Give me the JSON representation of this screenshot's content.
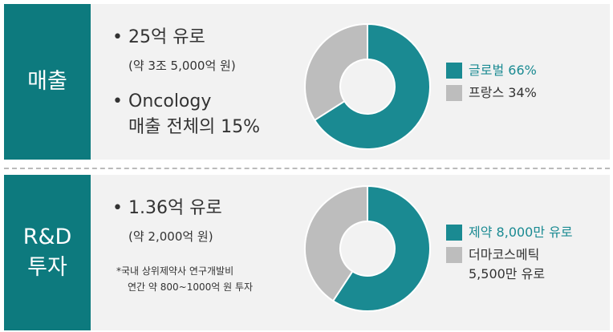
{
  "sections": [
    {
      "label": [
        "매출"
      ],
      "bullets": [
        {
          "lines": [
            "25억 유로"
          ],
          "sub": "(약 3조 5,000억 원)"
        },
        {
          "lines": [
            "Oncology",
            "매출 전체의 15%"
          ]
        }
      ]
    },
    {
      "label": [
        "R&D",
        "투자"
      ],
      "bullets": [
        {
          "lines": [
            "1.36억 유로"
          ],
          "sub": "(약 2,000억 원)"
        }
      ],
      "note": [
        "*국내 상위제약사 연구개발비",
        "연간 약 800~1000억 원 투자"
      ]
    }
  ],
  "chart_data": [
    {
      "type": "pie",
      "categories": [
        "글로벌",
        "프랑스"
      ],
      "values": [
        66,
        34
      ],
      "value_labels": [
        "66%",
        "34%"
      ],
      "colors": [
        "#1a8a92",
        "#bdbdbd"
      ]
    },
    {
      "type": "pie",
      "categories": [
        "제약",
        "더마코스메틱"
      ],
      "values": [
        8000,
        5500
      ],
      "value_labels": [
        "8,000만 유로",
        "5,500만 유로"
      ],
      "colors": [
        "#1a8a92",
        "#bdbdbd"
      ]
    }
  ]
}
